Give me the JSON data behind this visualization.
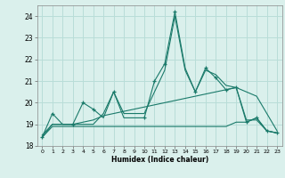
{
  "xlabel": "Humidex (Indice chaleur)",
  "bg_color": "#daf0ec",
  "grid_color": "#b8ddd8",
  "line_color": "#1a7a6a",
  "xlim": [
    -0.5,
    23.5
  ],
  "ylim": [
    18,
    24.5
  ],
  "yticks": [
    18,
    19,
    20,
    21,
    22,
    23,
    24
  ],
  "xticks": [
    0,
    1,
    2,
    3,
    4,
    5,
    6,
    7,
    8,
    9,
    10,
    11,
    12,
    13,
    14,
    15,
    16,
    17,
    18,
    19,
    20,
    21,
    22,
    23
  ],
  "line_main_x": [
    0,
    1,
    2,
    3,
    4,
    5,
    6,
    7,
    8,
    9,
    10,
    11,
    12,
    13,
    14,
    15,
    16,
    17,
    18,
    19,
    20,
    21,
    22,
    23
  ],
  "line_main_y": [
    18.4,
    19.5,
    19.0,
    19.0,
    20.0,
    19.7,
    19.3,
    20.5,
    19.3,
    19.3,
    19.3,
    21.0,
    21.8,
    24.2,
    21.6,
    20.5,
    21.6,
    21.15,
    20.6,
    20.7,
    19.1,
    19.3,
    18.7,
    18.6
  ],
  "line_smooth_x": [
    0,
    1,
    2,
    3,
    4,
    5,
    6,
    7,
    8,
    9,
    10,
    11,
    12,
    13,
    14,
    15,
    16,
    17,
    18,
    19,
    20,
    21,
    22,
    23
  ],
  "line_smooth_y": [
    18.4,
    19.0,
    19.0,
    19.0,
    19.0,
    19.0,
    19.5,
    20.5,
    19.5,
    19.5,
    19.5,
    20.5,
    21.5,
    24.0,
    21.5,
    20.5,
    21.5,
    21.3,
    20.8,
    20.7,
    19.2,
    19.2,
    18.7,
    18.6
  ],
  "line_rising_x": [
    0,
    1,
    2,
    3,
    4,
    5,
    6,
    7,
    8,
    9,
    10,
    11,
    12,
    13,
    14,
    15,
    16,
    17,
    18,
    19,
    20,
    21,
    22,
    23
  ],
  "line_rising_y": [
    18.5,
    19.0,
    19.0,
    19.0,
    19.1,
    19.2,
    19.4,
    19.5,
    19.6,
    19.7,
    19.8,
    19.9,
    20.0,
    20.1,
    20.2,
    20.3,
    20.4,
    20.5,
    20.6,
    20.7,
    20.5,
    20.3,
    19.5,
    18.7
  ],
  "line_flat_x": [
    0,
    1,
    2,
    3,
    4,
    5,
    6,
    7,
    8,
    9,
    10,
    11,
    12,
    13,
    14,
    15,
    16,
    17,
    18,
    19,
    20,
    21,
    22,
    23
  ],
  "line_flat_y": [
    18.4,
    18.9,
    18.9,
    18.9,
    18.9,
    18.9,
    18.9,
    18.9,
    18.9,
    18.9,
    18.9,
    18.9,
    18.9,
    18.9,
    18.9,
    18.9,
    18.9,
    18.9,
    18.9,
    19.1,
    19.1,
    19.3,
    18.7,
    18.6
  ],
  "markers_x": [
    0,
    1,
    3,
    4,
    5,
    7,
    10,
    11,
    12,
    13,
    15,
    16,
    17,
    18,
    19,
    20,
    21,
    22,
    23
  ],
  "markers_y": [
    18.4,
    19.5,
    19.0,
    20.0,
    19.7,
    20.5,
    19.3,
    21.0,
    21.8,
    24.2,
    20.5,
    21.6,
    21.15,
    20.6,
    20.7,
    19.1,
    19.3,
    18.7,
    18.6
  ]
}
